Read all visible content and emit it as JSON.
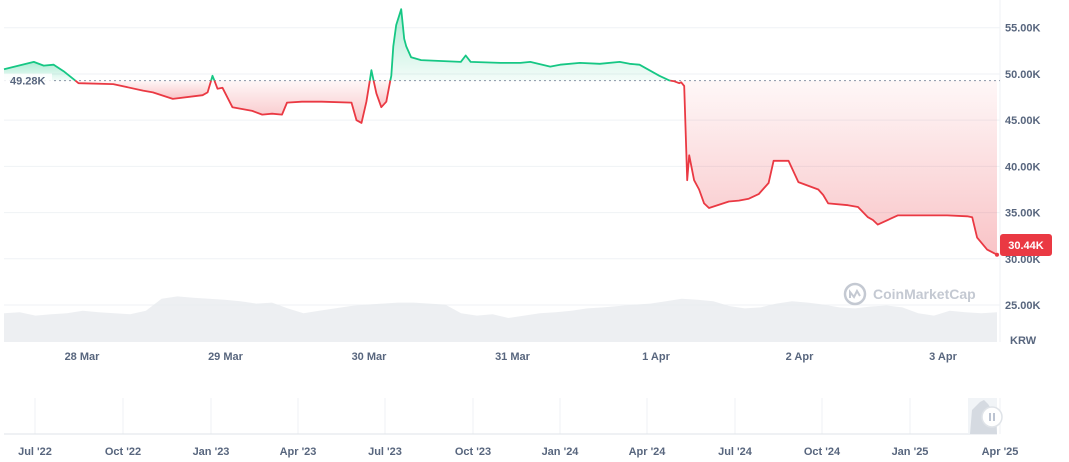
{
  "chart_data": {
    "type": "line",
    "unit": "KRW",
    "ylim": [
      21000,
      58000
    ],
    "y_ticks": [
      "25.00K",
      "30.00K",
      "35.00K",
      "40.00K",
      "45.00K",
      "50.00K",
      "55.00K"
    ],
    "y_tick_values": [
      25000,
      30000,
      35000,
      40000,
      45000,
      50000,
      55000
    ],
    "x_ticks": [
      "28 Mar",
      "29 Mar",
      "30 Mar",
      "31 Mar",
      "1 Apr",
      "2 Apr",
      "3 Apr"
    ],
    "reference": {
      "label": "49.28K",
      "value": 49280
    },
    "current": {
      "label": "30.44K",
      "value": 30440
    },
    "grid": true,
    "series": [
      {
        "x": [
          0,
          0.03,
          0.04,
          0.05,
          0.06,
          0.075,
          0.11,
          0.14,
          0.15,
          0.17,
          0.2,
          0.205,
          0.21,
          0.215,
          0.22,
          0.23,
          0.25,
          0.26,
          0.27,
          0.28,
          0.285,
          0.3,
          0.32,
          0.35,
          0.355,
          0.36,
          0.365,
          0.37,
          0.375,
          0.38,
          0.385,
          0.39,
          0.392,
          0.395,
          0.4,
          0.403,
          0.405,
          0.41,
          0.42,
          0.44,
          0.46,
          0.465,
          0.47,
          0.5,
          0.52,
          0.53,
          0.55,
          0.56,
          0.58,
          0.6,
          0.62,
          0.63,
          0.64,
          0.66,
          0.67,
          0.675,
          0.68,
          0.682,
          0.685,
          0.688,
          0.69,
          0.695,
          0.7,
          0.705,
          0.71,
          0.73,
          0.74,
          0.75,
          0.76,
          0.77,
          0.775,
          0.78,
          0.79,
          0.8,
          0.82,
          0.825,
          0.83,
          0.85,
          0.86,
          0.87,
          0.875,
          0.88,
          0.9,
          0.95,
          0.97,
          0.975,
          0.98,
          0.99,
          1.0
        ],
        "values": [
          50500,
          51300,
          50900,
          51000,
          50300,
          49000,
          48900,
          48200,
          48000,
          47300,
          47700,
          48000,
          49800,
          48400,
          48500,
          46400,
          46000,
          45600,
          45700,
          45600,
          46900,
          47000,
          47000,
          46900,
          45000,
          44700,
          47000,
          50400,
          47900,
          46400,
          47000,
          49800,
          53000,
          55300,
          57000,
          53800,
          53000,
          51800,
          51500,
          51400,
          51300,
          52000,
          51300,
          51200,
          51200,
          51300,
          50800,
          51000,
          51200,
          51100,
          51300,
          51100,
          51000,
          49800,
          49300,
          49200,
          49000,
          49100,
          48700,
          38500,
          41200,
          38500,
          37500,
          36000,
          35500,
          36200,
          36300,
          36500,
          37000,
          38200,
          40600,
          40600,
          40600,
          38300,
          37500,
          36900,
          36000,
          35800,
          35600,
          34500,
          34200,
          33700,
          34700,
          34700,
          34600,
          34500,
          32300,
          31000,
          30440
        ]
      }
    ]
  },
  "navigator": {
    "labels": [
      "Jul '22",
      "Oct '22",
      "Jan '23",
      "Apr '23",
      "Jul '23",
      "Oct '23",
      "Jan '24",
      "Apr '24",
      "Jul '24",
      "Oct '24",
      "Jan '25",
      "Apr '25"
    ]
  },
  "watermark": {
    "text": "CoinMarketCap",
    "icon": "coinmarketcap-logo-icon"
  },
  "colors": {
    "up": "#16c784",
    "down": "#ea3943",
    "grid": "#eff2f5",
    "volume": "#e7e9ee",
    "text": "#58667e"
  }
}
